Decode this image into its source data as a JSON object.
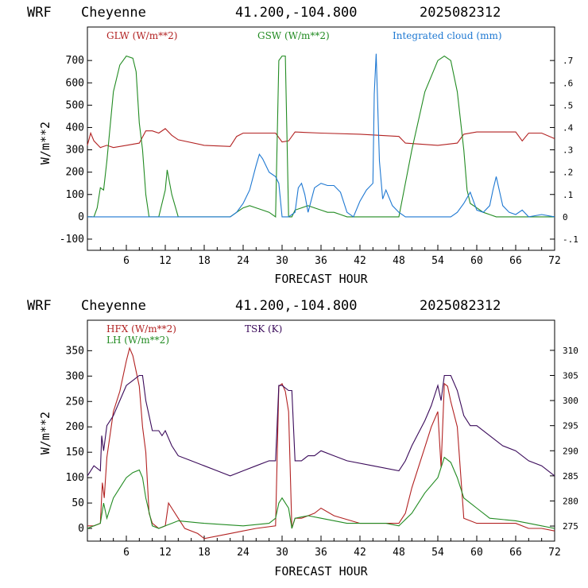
{
  "chart_data": [
    {
      "type": "line",
      "header": {
        "model": "WRF",
        "station": "Cheyenne",
        "coords": "41.200,-104.800",
        "init": "2025082312"
      },
      "xlabel": "FORECAST HOUR",
      "ylabel": "W/m**2",
      "xlim": [
        0,
        72
      ],
      "ylim": [
        -150,
        850
      ],
      "y2lim": [
        -0.15,
        0.85
      ],
      "xticks": [
        "6",
        "12",
        "18",
        "24",
        "30",
        "36",
        "42",
        "48",
        "54",
        "60",
        "66",
        "72"
      ],
      "yticks": [
        "-100",
        "0",
        "100",
        "200",
        "300",
        "400",
        "500",
        "600",
        "700"
      ],
      "y2ticks": [
        "-.1",
        "0",
        ".1",
        ".2",
        ".3",
        ".4",
        ".5",
        ".6",
        ".7"
      ],
      "series": [
        {
          "name": "GLW (W/m**2)",
          "color": "#b22222",
          "axis": "left",
          "x": [
            0,
            0.5,
            1,
            2,
            3,
            4,
            6,
            8,
            9,
            10,
            11,
            12,
            13,
            14,
            18,
            22,
            23,
            24,
            29,
            30,
            31,
            32,
            36,
            42,
            48,
            49,
            54,
            57,
            58,
            60,
            66,
            67,
            68,
            70,
            72
          ],
          "y": [
            320,
            375,
            340,
            310,
            320,
            310,
            320,
            330,
            385,
            385,
            375,
            395,
            365,
            345,
            320,
            315,
            360,
            375,
            375,
            335,
            340,
            380,
            375,
            370,
            360,
            330,
            320,
            330,
            370,
            380,
            380,
            340,
            375,
            375,
            350
          ]
        },
        {
          "name": "GSW (W/m**2)",
          "color": "#228b22",
          "axis": "left",
          "x": [
            0,
            1,
            1.5,
            2,
            2.5,
            3,
            4,
            5,
            6,
            7,
            7.5,
            8,
            8.5,
            9,
            9.5,
            10,
            11,
            12,
            12.3,
            13,
            14,
            16,
            22,
            23,
            24,
            25,
            26,
            27,
            28,
            29,
            29.5,
            30,
            30.5,
            31,
            31.5,
            32,
            33,
            34,
            35,
            36,
            37,
            38,
            39,
            40,
            42,
            45,
            48,
            50,
            52,
            54,
            55,
            56,
            57,
            58,
            58.5,
            59,
            60,
            61,
            62,
            63,
            64,
            66,
            72
          ],
          "y": [
            0,
            0,
            40,
            130,
            120,
            250,
            560,
            680,
            720,
            710,
            650,
            420,
            300,
            100,
            0,
            0,
            0,
            120,
            210,
            100,
            0,
            0,
            0,
            20,
            40,
            50,
            40,
            30,
            20,
            0,
            700,
            720,
            720,
            0,
            0,
            30,
            40,
            50,
            40,
            30,
            20,
            20,
            10,
            0,
            0,
            0,
            0,
            300,
            560,
            700,
            720,
            700,
            560,
            300,
            120,
            60,
            40,
            20,
            10,
            0,
            0,
            0,
            0
          ]
        },
        {
          "name": "Integrated cloud (mm)",
          "color": "#1e78d2",
          "axis": "right",
          "x": [
            0,
            22,
            23,
            24,
            25,
            26,
            26.5,
            27,
            28,
            29,
            29.5,
            30,
            31,
            32,
            32.5,
            33,
            33.5,
            34,
            35,
            36,
            37,
            38,
            39,
            40,
            41,
            42,
            43,
            44,
            44.2,
            44.5,
            45,
            45.5,
            46,
            47,
            48,
            49,
            50,
            56,
            57,
            58,
            59,
            60,
            61,
            62,
            62.5,
            63,
            64,
            65,
            66,
            67,
            68,
            70,
            72
          ],
          "y": [
            0,
            0,
            0.02,
            0.06,
            0.12,
            0.23,
            0.28,
            0.26,
            0.2,
            0.18,
            0.15,
            0,
            0,
            0.02,
            0.13,
            0.15,
            0.1,
            0.02,
            0.13,
            0.15,
            0.14,
            0.14,
            0.11,
            0.02,
            0,
            0.07,
            0.12,
            0.15,
            0.55,
            0.73,
            0.25,
            0.08,
            0.12,
            0.05,
            0.02,
            0,
            0,
            0,
            0.02,
            0.06,
            0.11,
            0.03,
            0.02,
            0.05,
            0.12,
            0.18,
            0.05,
            0.02,
            0.01,
            0.03,
            0,
            0.01,
            0
          ]
        }
      ]
    },
    {
      "type": "line",
      "header": {
        "model": "WRF",
        "station": "Cheyenne",
        "coords": "41.200,-104.800",
        "init": "2025082312"
      },
      "xlabel": "FORECAST HOUR",
      "ylabel": "W/m**2",
      "xlim": [
        0,
        72
      ],
      "ylim": [
        -25,
        410
      ],
      "y2lim": [
        272,
        316
      ],
      "xticks": [
        "6",
        "12",
        "18",
        "24",
        "30",
        "36",
        "42",
        "48",
        "54",
        "60",
        "66",
        "72"
      ],
      "yticks": [
        "0",
        "50",
        "100",
        "150",
        "200",
        "250",
        "300",
        "350"
      ],
      "y2ticks": [
        "275",
        "280",
        "285",
        "290",
        "295",
        "300",
        "305",
        "310"
      ],
      "series": [
        {
          "name": "HFX (W/m**2)",
          "color": "#b22222",
          "axis": "left",
          "x": [
            0,
            1,
            2,
            2.3,
            2.6,
            3,
            4,
            5,
            6,
            6.5,
            7,
            8,
            8.5,
            9,
            9.5,
            10,
            11,
            12,
            12.5,
            13,
            14,
            15,
            17,
            18,
            22,
            24,
            26,
            29,
            29.5,
            30,
            30.5,
            31,
            31.5,
            32,
            33,
            34,
            35,
            36,
            38,
            42,
            46,
            48,
            49,
            50,
            51,
            52,
            53,
            54,
            54.5,
            55,
            55.5,
            56,
            57,
            58,
            60,
            66,
            68,
            70,
            72
          ],
          "y": [
            5,
            5,
            10,
            90,
            60,
            140,
            230,
            270,
            330,
            355,
            340,
            280,
            200,
            150,
            30,
            10,
            0,
            5,
            50,
            40,
            20,
            0,
            -10,
            -20,
            -10,
            -5,
            0,
            5,
            280,
            285,
            270,
            230,
            0,
            20,
            20,
            25,
            30,
            40,
            25,
            10,
            10,
            10,
            30,
            80,
            120,
            160,
            200,
            230,
            120,
            285,
            280,
            250,
            200,
            20,
            10,
            10,
            0,
            0,
            -5
          ]
        },
        {
          "name": "LH  (W/m**2)",
          "color": "#228b22",
          "axis": "left",
          "x": [
            0,
            1,
            2,
            2.5,
            3,
            4,
            5,
            6,
            7,
            8,
            8.5,
            9,
            10,
            11,
            12,
            13,
            14,
            18,
            24,
            28,
            29,
            29.5,
            30,
            31,
            31.5,
            32,
            34,
            36,
            40,
            46,
            48,
            50,
            52,
            54,
            55,
            56,
            57,
            58,
            60,
            62,
            66,
            68,
            70,
            72
          ],
          "y": [
            0,
            5,
            10,
            50,
            20,
            60,
            80,
            100,
            110,
            115,
            100,
            60,
            5,
            0,
            5,
            10,
            15,
            10,
            5,
            10,
            20,
            50,
            60,
            40,
            0,
            20,
            25,
            20,
            10,
            10,
            5,
            30,
            70,
            100,
            140,
            130,
            100,
            60,
            40,
            20,
            15,
            10,
            5,
            0
          ]
        },
        {
          "name": "TSK (K)",
          "color": "#3a0a5a",
          "axis": "right",
          "x": [
            0,
            1,
            2,
            2.2,
            2.5,
            3,
            4,
            5,
            6,
            7,
            8,
            8.5,
            9,
            9.5,
            10,
            11,
            11.5,
            12,
            13,
            14,
            16,
            18,
            20,
            22,
            24,
            26,
            28,
            29,
            29.5,
            30,
            31,
            31.5,
            32,
            33,
            34,
            35,
            36,
            38,
            40,
            44,
            48,
            49,
            50,
            52,
            53,
            54,
            54.5,
            55,
            56,
            57,
            58,
            59,
            60,
            62,
            64,
            66,
            68,
            70,
            72
          ],
          "y": [
            285,
            287,
            286,
            293,
            290,
            295,
            297,
            300,
            303,
            304,
            305,
            305,
            300,
            297,
            294,
            294,
            293,
            294,
            291,
            289,
            288,
            287,
            286,
            285,
            286,
            287,
            288,
            288,
            303,
            303,
            302,
            302,
            288,
            288,
            289,
            289,
            290,
            289,
            288,
            287,
            286,
            288,
            291,
            296,
            299,
            303,
            300,
            305,
            305,
            302,
            297,
            295,
            295,
            293,
            291,
            290,
            288,
            287,
            285
          ]
        }
      ]
    }
  ]
}
